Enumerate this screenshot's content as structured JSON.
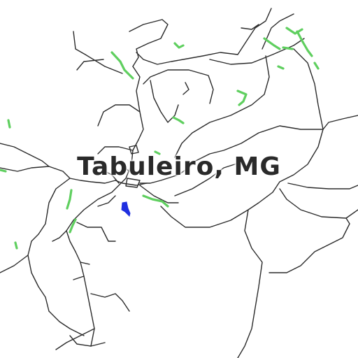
{
  "map": {
    "place_label": "Tabuleiro, MG",
    "colors": {
      "background": "#ffffff",
      "road": "#2b2b2b",
      "vegetation": "#5fcf5f",
      "water": "#1f2fe0",
      "label": "#2a2a2a"
    },
    "layers": [
      "roads",
      "vegetation",
      "water",
      "place-label"
    ]
  }
}
